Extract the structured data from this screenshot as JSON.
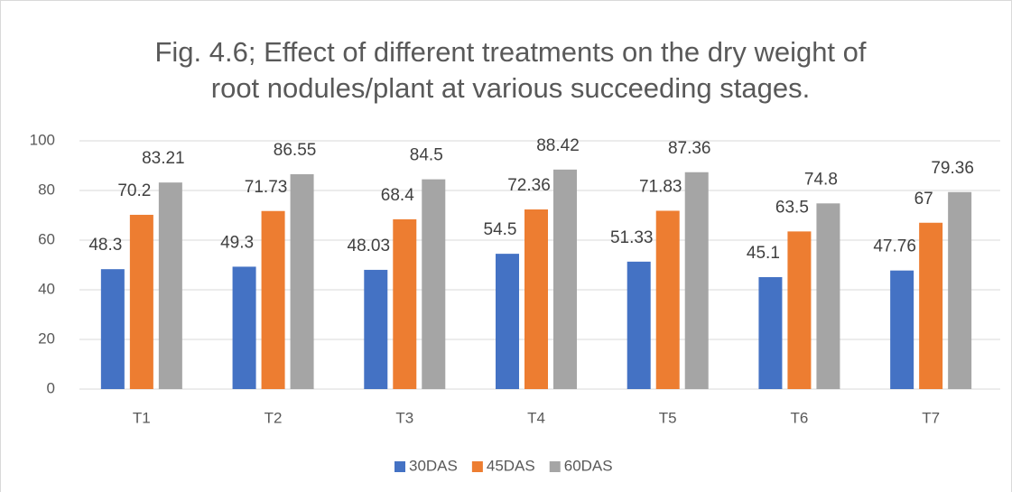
{
  "chart_data": {
    "type": "bar",
    "title": "Fig. 4.6; Effect of different treatments on the dry weight of root nodules/plant at various succeeding stages.",
    "categories": [
      "T1",
      "T2",
      "T3",
      "T4",
      "T5",
      "T6",
      "T7"
    ],
    "series": [
      {
        "name": "30DAS",
        "color": "#4472c4",
        "values": [
          48.3,
          49.3,
          48.03,
          54.5,
          51.33,
          45.1,
          47.76
        ]
      },
      {
        "name": "45DAS",
        "color": "#ed7d31",
        "values": [
          70.2,
          71.73,
          68.4,
          72.36,
          71.83,
          63.5,
          67
        ]
      },
      {
        "name": "60DAS",
        "color": "#a5a5a5",
        "values": [
          83.21,
          86.55,
          84.5,
          88.42,
          87.36,
          74.8,
          79.36
        ]
      }
    ],
    "ylim": [
      0,
      100
    ],
    "yticks": [
      0,
      20,
      40,
      60,
      80,
      100
    ],
    "grid": true,
    "legend": "bottom"
  }
}
